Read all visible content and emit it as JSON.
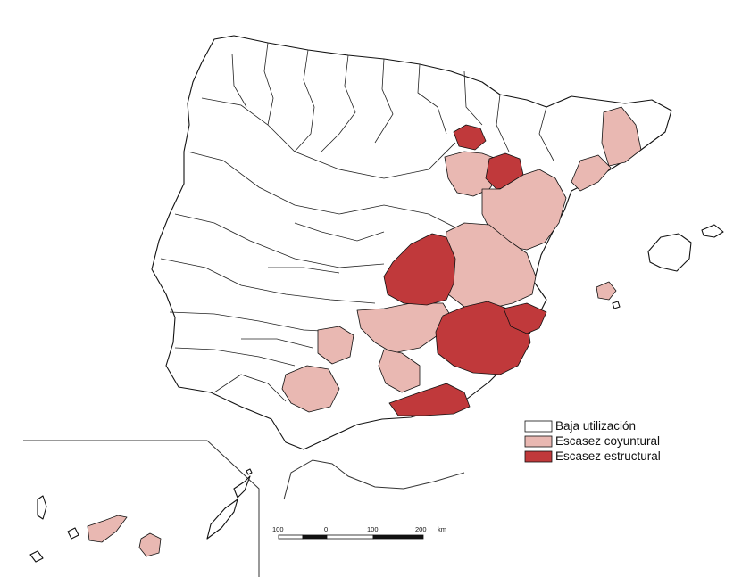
{
  "colors": {
    "baja_utilizacion": "#ffffff",
    "escasez_coyuntural": "#e9b8b2",
    "escasez_estructural": "#c0393b",
    "outline": "#111111"
  },
  "legend": {
    "items": [
      {
        "label": "Baja utilización",
        "class": "baja_utilizacion"
      },
      {
        "label": "Escasez coyuntural",
        "class": "escasez_coyuntural"
      },
      {
        "label": "Escasez estructural",
        "class": "escasez_estructural"
      }
    ]
  },
  "scale_bar": {
    "tick_labels": [
      "100",
      "0",
      "100",
      "200"
    ],
    "unit": "km"
  },
  "regions": [
    {
      "name": "ebro-upper",
      "class": "escasez_coyuntural"
    },
    {
      "name": "ebro-structural-north",
      "class": "escasez_estructural"
    },
    {
      "name": "ebro-structural-middle",
      "class": "escasez_estructural"
    },
    {
      "name": "ebro-middle",
      "class": "escasez_coyuntural"
    },
    {
      "name": "catalonia-interior",
      "class": "escasez_coyuntural"
    },
    {
      "name": "catalonia-coast",
      "class": "escasez_coyuntural"
    },
    {
      "name": "jucar-north",
      "class": "escasez_coyuntural"
    },
    {
      "name": "jucar-central",
      "class": "escasez_coyuntural"
    },
    {
      "name": "upper-guadiana",
      "class": "escasez_estructural"
    },
    {
      "name": "segura",
      "class": "escasez_estructural"
    },
    {
      "name": "alicante-coast",
      "class": "escasez_estructural"
    },
    {
      "name": "almeria",
      "class": "escasez_estructural"
    },
    {
      "name": "upper-guadalquivir",
      "class": "escasez_coyuntural"
    },
    {
      "name": "middle-guadalquivir",
      "class": "escasez_coyuntural"
    },
    {
      "name": "lower-guadalquivir",
      "class": "escasez_coyuntural"
    },
    {
      "name": "ibiza",
      "class": "escasez_coyuntural"
    },
    {
      "name": "tenerife",
      "class": "escasez_coyuntural"
    },
    {
      "name": "gran-canaria",
      "class": "escasez_coyuntural"
    }
  ]
}
